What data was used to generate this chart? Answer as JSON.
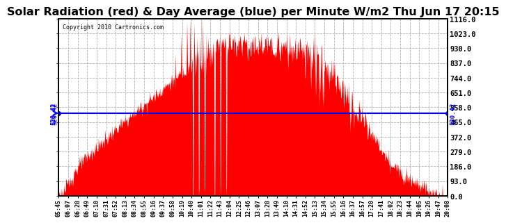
{
  "title": "Solar Radiation (red) & Day Average (blue) per Minute W/m2 Thu Jun 17 20:15",
  "copyright": "Copyright 2010 Cartronics.com",
  "avg_value": 520.42,
  "y_max": 1116.0,
  "y_min": 0.0,
  "y_ticks": [
    0.0,
    93.0,
    186.0,
    279.0,
    372.0,
    465.0,
    558.0,
    651.0,
    744.0,
    837.0,
    930.0,
    1023.0,
    1116.0
  ],
  "x_labels": [
    "05:45",
    "06:07",
    "06:28",
    "06:49",
    "07:10",
    "07:31",
    "07:52",
    "08:13",
    "08:34",
    "08:55",
    "09:16",
    "09:37",
    "09:58",
    "10:19",
    "10:40",
    "11:01",
    "11:22",
    "11:43",
    "12:04",
    "12:25",
    "12:46",
    "13:07",
    "13:28",
    "13:49",
    "14:10",
    "14:31",
    "14:52",
    "15:13",
    "15:34",
    "15:55",
    "16:16",
    "16:37",
    "16:57",
    "17:20",
    "17:41",
    "18:02",
    "18:23",
    "18:44",
    "19:05",
    "19:26",
    "19:47",
    "20:08"
  ],
  "fill_color": "#FF0000",
  "line_color": "#0000FF",
  "bg_color": "#FFFFFF",
  "grid_color": "#B0B0B0",
  "title_fontsize": 11.5,
  "avg_label": "520.42"
}
